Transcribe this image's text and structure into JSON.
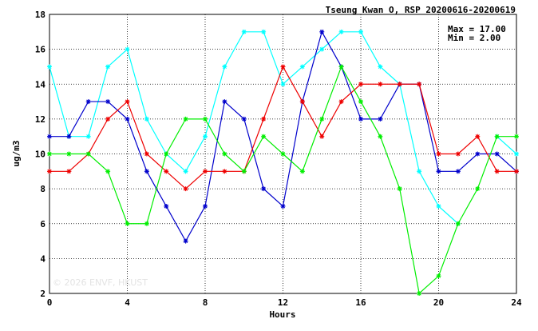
{
  "chart_data": {
    "type": "line",
    "title": "Tseung Kwan O, RSP 20200616-20200619",
    "xlabel": "Hours",
    "ylabel": "ug/m3",
    "xlim": [
      0,
      24
    ],
    "ylim": [
      2,
      18
    ],
    "xticks": [
      0,
      4,
      8,
      12,
      16,
      20,
      24
    ],
    "yticks": [
      2,
      4,
      6,
      8,
      10,
      12,
      14,
      16,
      18
    ],
    "grid": true,
    "stats": {
      "max_label": "Max = 17.00",
      "min_label": "Min =  2.00"
    },
    "watermark": "© 2026 ENVF, HKUST",
    "x": [
      0,
      1,
      2,
      3,
      4,
      5,
      6,
      7,
      8,
      9,
      10,
      11,
      12,
      13,
      14,
      15,
      16,
      17,
      18,
      19,
      20,
      21,
      22,
      23,
      24
    ],
    "series": [
      {
        "color": "#00ffff",
        "values": [
          15,
          11,
          11,
          15,
          16,
          12,
          10,
          9,
          11,
          15,
          17,
          17,
          14,
          15,
          16,
          17,
          17,
          15,
          14,
          9,
          7,
          6,
          null,
          11,
          10
        ]
      },
      {
        "color": "#0000cc",
        "values": [
          11,
          11,
          13,
          13,
          12,
          9,
          7,
          5,
          7,
          13,
          12,
          8,
          7,
          13,
          17,
          15,
          12,
          12,
          14,
          14,
          9,
          9,
          10,
          10,
          9
        ]
      },
      {
        "color": "#ee0000",
        "values": [
          9,
          9,
          10,
          12,
          13,
          10,
          9,
          8,
          9,
          9,
          9,
          12,
          15,
          13,
          11,
          13,
          14,
          14,
          14,
          14,
          10,
          10,
          11,
          9,
          9
        ]
      },
      {
        "color": "#00ee00",
        "values": [
          10,
          10,
          10,
          9,
          6,
          6,
          10,
          12,
          12,
          10,
          9,
          11,
          10,
          9,
          12,
          15,
          13,
          11,
          8,
          2,
          3,
          6,
          8,
          11,
          11
        ]
      }
    ]
  }
}
